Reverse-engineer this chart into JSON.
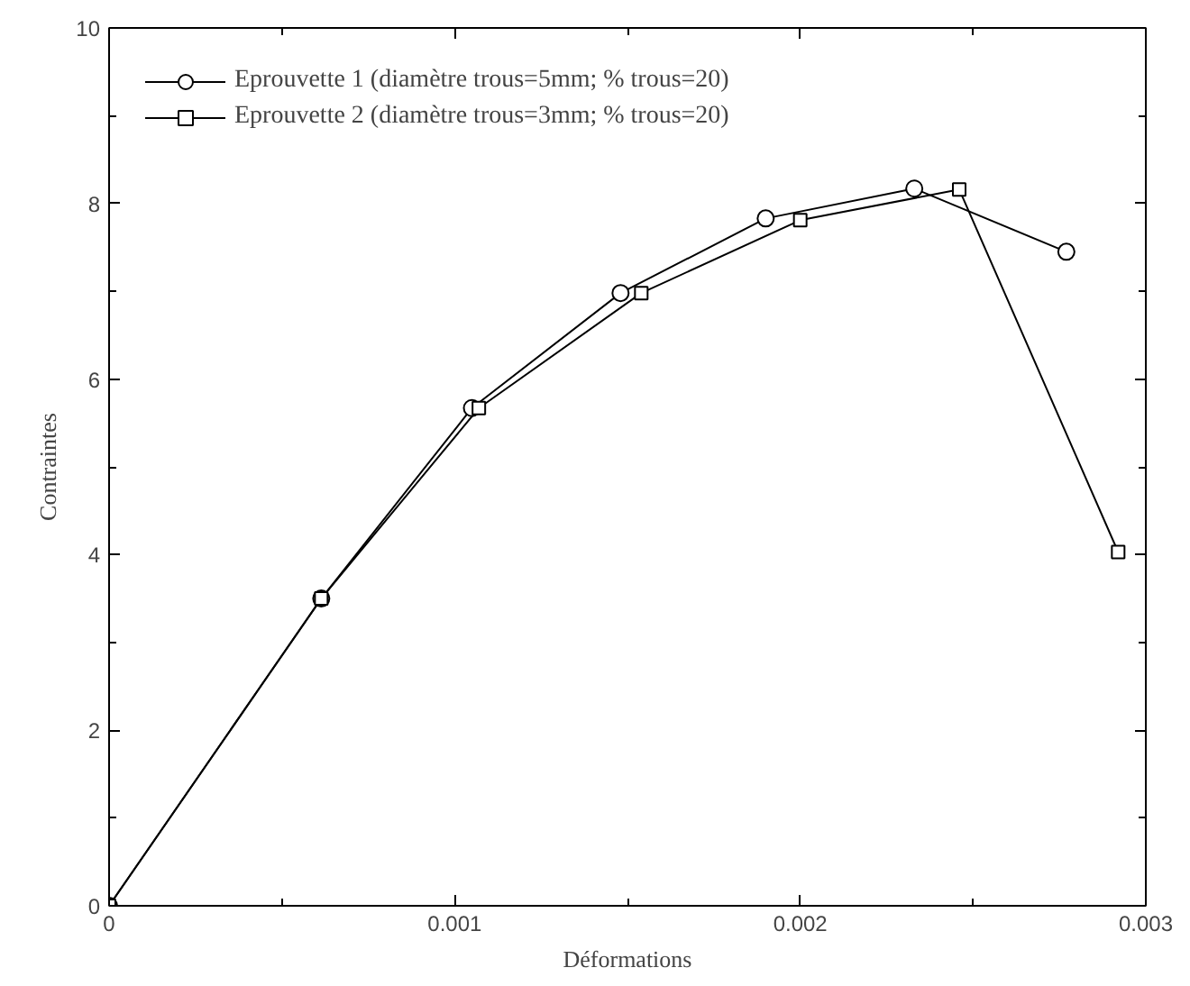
{
  "chart_data": {
    "type": "line",
    "xlabel": "Déformations",
    "ylabel": "Contraintes",
    "xlim": [
      0,
      0.003
    ],
    "ylim": [
      0,
      10
    ],
    "xticks": [
      0,
      0.001,
      0.002,
      0.003
    ],
    "yticks": [
      0,
      2,
      4,
      6,
      8,
      10
    ],
    "grid": false,
    "legend": "top left",
    "line_style": "solid",
    "series": [
      {
        "name": "Eprouvette 1 (diamètre trous=5mm; % trous=20)",
        "color": "#000000",
        "marker": "circle",
        "x": [
          0,
          0.000614,
          0.00105,
          0.00148,
          0.0019,
          0.00233,
          0.00277
        ],
        "values": [
          0,
          3.5,
          5.67,
          6.98,
          7.83,
          8.17,
          7.45
        ]
      },
      {
        "name": "Eprouvette 2 (diamètre trous=3mm; % trous=20)",
        "color": "#000000",
        "marker": "square",
        "x": [
          0,
          0.000614,
          0.00107,
          0.00154,
          0.002,
          0.00246,
          0.00292
        ],
        "values": [
          0,
          3.5,
          5.67,
          6.98,
          7.81,
          8.16,
          4.03
        ]
      }
    ]
  }
}
